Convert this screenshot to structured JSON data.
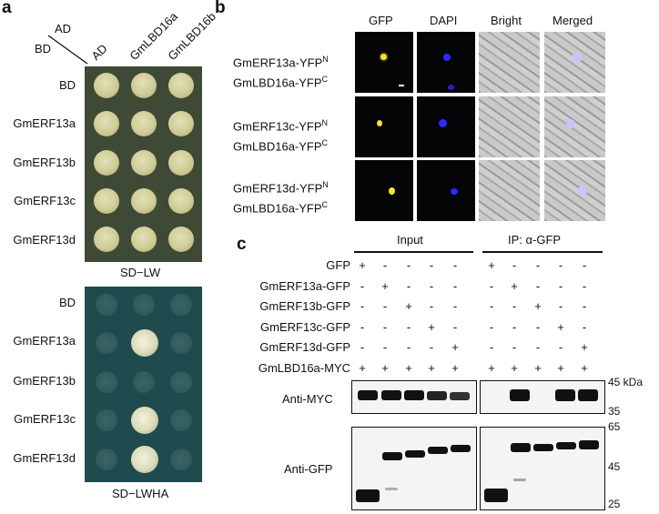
{
  "panel_a": {
    "label": "a",
    "corner_top": "AD",
    "corner_bottom": "BD",
    "columns": [
      "AD",
      "GmLBD16a",
      "GmLBD16b"
    ],
    "rows": [
      "BD",
      "GmERF13a",
      "GmERF13b",
      "GmERF13c",
      "GmERF13d"
    ],
    "plate1_caption": "SD−LW",
    "plate2_rows": [
      "BD",
      "GmERF13a",
      "GmERF13b",
      "GmERF13c",
      "GmERF13d"
    ],
    "plate2_caption": "SD−LWHA"
  },
  "panel_b": {
    "label": "b",
    "headers": [
      "GFP",
      "DAPI",
      "Bright",
      "Merged"
    ],
    "rows": [
      {
        "line1": "GmERF13a-YFP",
        "sup1": "N",
        "line2": "GmLBD16a-YFP",
        "sup2": "C"
      },
      {
        "line1": "GmERF13c-YFP",
        "sup1": "N",
        "line2": "GmLBD16a-YFP",
        "sup2": "C"
      },
      {
        "line1": "GmERF13d-YFP",
        "sup1": "N",
        "line2": "GmLBD16a-YFP",
        "sup2": "C"
      }
    ]
  },
  "panel_c": {
    "label": "c",
    "group_input": "Input",
    "group_ip": "IP: α-GFP",
    "rows": [
      {
        "name": "GFP",
        "signs": [
          "+",
          "-",
          "-",
          "-",
          "-",
          "+",
          "-",
          "-",
          "-",
          "-"
        ]
      },
      {
        "name": "GmERF13a-GFP",
        "signs": [
          "-",
          "+",
          "-",
          "-",
          "-",
          "-",
          "+",
          "-",
          "-",
          "-"
        ]
      },
      {
        "name": "GmERF13b-GFP",
        "signs": [
          "-",
          "-",
          "+",
          "-",
          "-",
          "-",
          "-",
          "+",
          "-",
          "-"
        ]
      },
      {
        "name": "GmERF13c-GFP",
        "signs": [
          "-",
          "-",
          "-",
          "+",
          "-",
          "-",
          "-",
          "-",
          "+",
          "-"
        ]
      },
      {
        "name": "GmERF13d-GFP",
        "signs": [
          "-",
          "-",
          "-",
          "-",
          "+",
          "-",
          "-",
          "-",
          "-",
          "+"
        ]
      },
      {
        "name": "GmLBD16a-MYC",
        "signs": [
          "+",
          "+",
          "+",
          "+",
          "+",
          "+",
          "+",
          "+",
          "+",
          "+"
        ]
      }
    ],
    "blot1_label": "Anti-MYC",
    "blot2_label": "Anti-GFP",
    "mw_top": [
      "45 kDa",
      "35"
    ],
    "mw_bottom": [
      "65",
      "45",
      "25"
    ]
  }
}
